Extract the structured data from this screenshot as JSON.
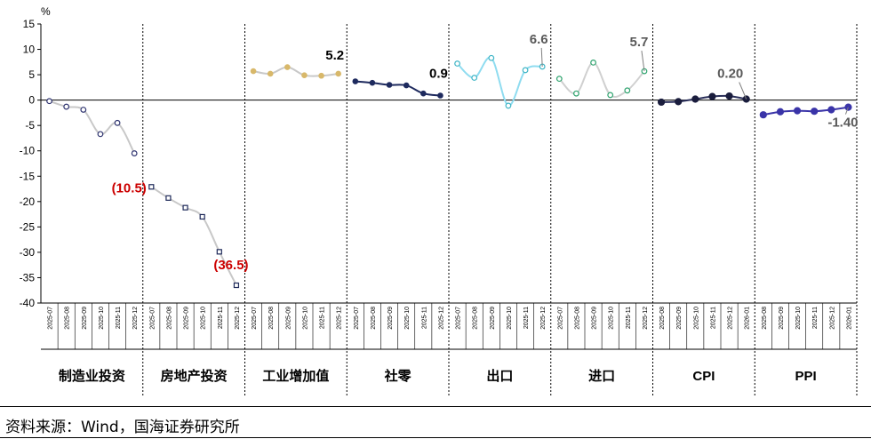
{
  "chart_data": {
    "type": "line",
    "y_unit": "%",
    "ylim": [
      -40,
      15
    ],
    "y_ticks": [
      "15",
      "10",
      "5",
      "0",
      "-5",
      "-10",
      "-15",
      "-20",
      "-25",
      "-30",
      "-35",
      "-40"
    ],
    "groups": [
      {
        "name": "制造业投资",
        "months": [
          "2025-07",
          "2025-08",
          "2025-09",
          "2025-10",
          "2025-11",
          "2025-12"
        ],
        "values": [
          -0.2,
          -1.3,
          -1.9,
          -6.7,
          -4.5,
          -10.5
        ],
        "last_label": "(10.5)",
        "label_color": "#cc0000",
        "line_color": "#c8c8c8",
        "marker": "circle-open",
        "marker_color": "#2f3470"
      },
      {
        "name": "房地产投资",
        "months": [
          "2025-07",
          "2025-08",
          "2025-09",
          "2025-10",
          "2025-11",
          "2025-12"
        ],
        "values": [
          -17.1,
          -19.3,
          -21.2,
          -23.0,
          -29.9,
          -36.5
        ],
        "last_label": "(36.5)",
        "label_color": "#cc0000",
        "line_color": "#c8c8c8",
        "marker": "square-open",
        "marker_color": "#1f2a5a"
      },
      {
        "name": "工业增加值",
        "months": [
          "2025-07",
          "2025-08",
          "2025-09",
          "2025-10",
          "2025-11",
          "2025-12"
        ],
        "values": [
          5.7,
          5.2,
          6.5,
          4.9,
          4.8,
          5.2
        ],
        "last_label": "5.2",
        "label_color": "#000000",
        "line_color": "#c8c8c8",
        "marker": "circle-filled",
        "marker_color": "#d8b86a"
      },
      {
        "name": "社零",
        "months": [
          "2025-07",
          "2025-08",
          "2025-09",
          "2025-10",
          "2025-11",
          "2025-12"
        ],
        "values": [
          3.7,
          3.4,
          3.0,
          2.9,
          1.3,
          0.9
        ],
        "last_label": "0.9",
        "label_color": "#000000",
        "line_color": "#1e2a5e",
        "marker": "circle-filled",
        "marker_color": "#1e2a5e"
      },
      {
        "name": "出口",
        "months": [
          "2025-07",
          "2025-08",
          "2025-09",
          "2025-10",
          "2025-11",
          "2025-12"
        ],
        "values": [
          7.2,
          4.4,
          8.3,
          -1.1,
          5.9,
          6.6
        ],
        "last_label": "6.6",
        "label_color": "#595959",
        "line_color": "#8fdcf0",
        "marker": "circle-open",
        "marker_color": "#3fb5c6"
      },
      {
        "name": "进口",
        "months": [
          "2025-07",
          "2025-08",
          "2025-09",
          "2025-10",
          "2025-11",
          "2025-12"
        ],
        "values": [
          4.2,
          1.3,
          7.4,
          1.0,
          1.9,
          5.7
        ],
        "last_label": "5.7",
        "label_color": "#595959",
        "line_color": "#d0d0d0",
        "marker": "circle-open",
        "marker_color": "#2ea36e"
      },
      {
        "name": "CPI",
        "months": [
          "2025-08",
          "2025-09",
          "2025-10",
          "2025-11",
          "2025-12",
          "2026-01"
        ],
        "values": [
          -0.4,
          -0.3,
          0.2,
          0.7,
          0.8,
          0.2
        ],
        "last_label": "0.20",
        "label_color": "#595959",
        "line_color": "#2a2f5a",
        "marker": "circle-filled",
        "marker_color": "#1a1d3d"
      },
      {
        "name": "PPI",
        "months": [
          "2025-08",
          "2025-09",
          "2025-10",
          "2025-11",
          "2025-12",
          "2026-01"
        ],
        "values": [
          -2.9,
          -2.3,
          -2.1,
          -2.2,
          -1.9,
          -1.4
        ],
        "last_label": "-1.40",
        "label_color": "#595959",
        "line_color": "#3a34a8",
        "marker": "circle-filled",
        "marker_color": "#3a34a8"
      }
    ]
  },
  "source_text": "资料来源：Wind，国海证券研究所"
}
